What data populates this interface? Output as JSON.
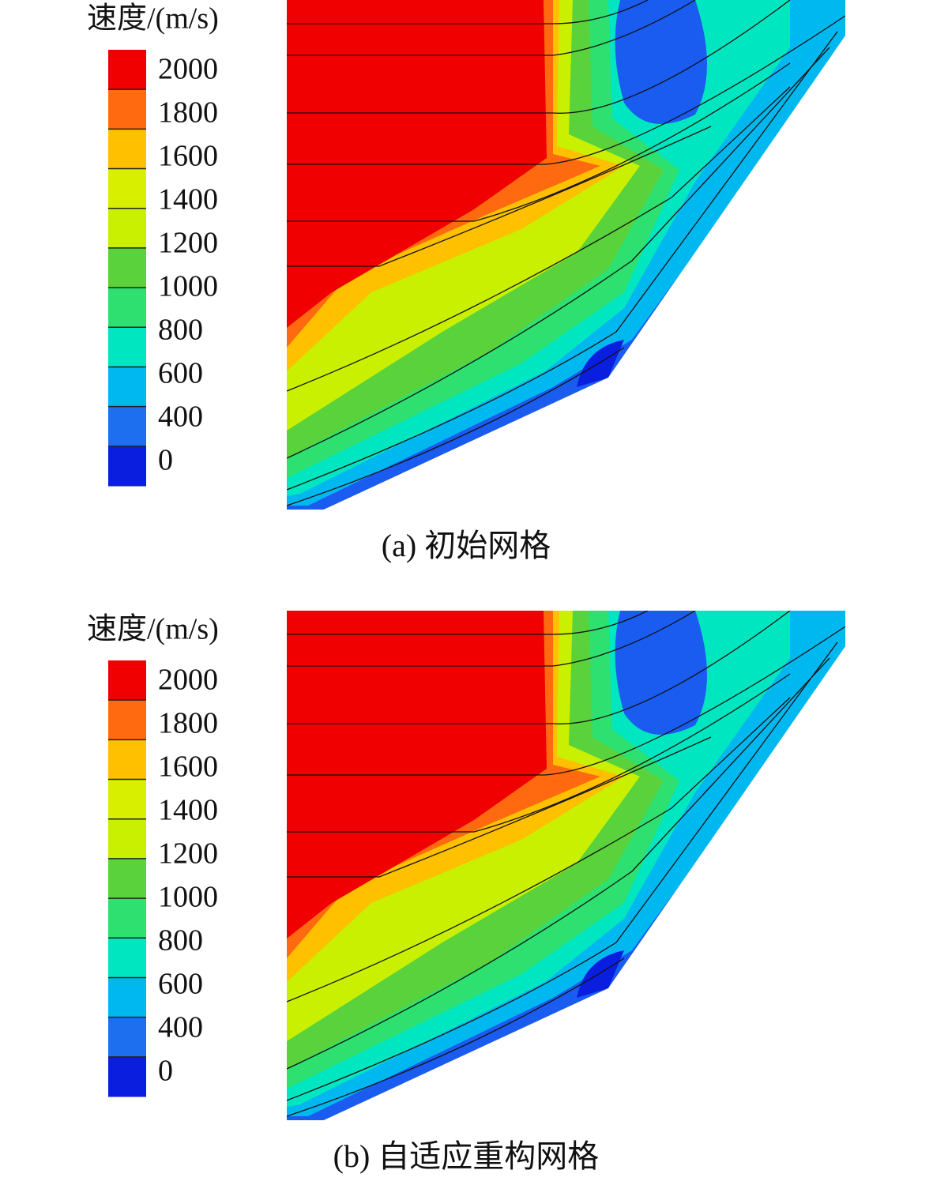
{
  "panels": [
    {
      "legend": {
        "title": "速度/(m/s)",
        "labels": [
          2000,
          1800,
          1600,
          1400,
          1200,
          1000,
          800,
          600,
          400,
          0
        ],
        "colors": [
          "#f00000",
          "#ff6a10",
          "#ffc000",
          "#d8f000",
          "#c8f000",
          "#5ad23c",
          "#2ee070",
          "#00e6c0",
          "#00b8f0",
          "#1e6ef0",
          "#0a1ee0"
        ]
      },
      "caption": "(a) 初始网格"
    },
    {
      "legend": {
        "title": "速度/(m/s)",
        "labels": [
          2000,
          1800,
          1600,
          1400,
          1200,
          1000,
          800,
          600,
          400,
          0
        ],
        "colors": [
          "#f00000",
          "#ff6a10",
          "#ffc000",
          "#d8f000",
          "#c8f000",
          "#5ad23c",
          "#2ee070",
          "#00e6c0",
          "#00b8f0",
          "#1e6ef0",
          "#0a1ee0"
        ]
      },
      "caption": "(b) 自适应重构网格"
    }
  ]
}
